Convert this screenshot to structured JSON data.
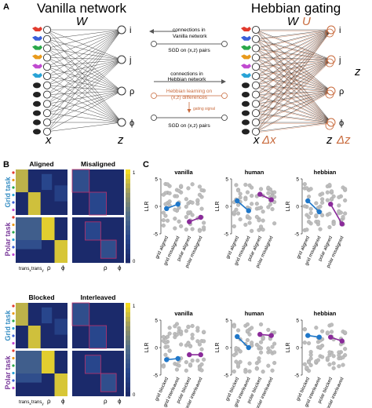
{
  "panel_a": {
    "letter": "A",
    "vanilla": {
      "title": "Vanilla network",
      "weight_label": "W",
      "input_label": "x",
      "output_label": "z"
    },
    "hebbian": {
      "title": "Hebbian gating",
      "weight_label": "W",
      "weight_label2": "U",
      "input_label": "x",
      "input_delta": "Δx",
      "output_label": "z",
      "output_delta": "Δz",
      "side_label": "z"
    },
    "output_nodes": [
      "i",
      "j",
      "ρ",
      "ϕ"
    ],
    "legend": {
      "vanilla_connections": "connections in\nVanilla network",
      "vanilla_sgd": "SGD on (x,z) pairs",
      "hebbian_connections": "connections in\nHebbian network",
      "hebbian_learning": "Hebbian learning on\n(x,z) differences",
      "gating_signal": "gating signal",
      "hebbian_sgd": "SGD on (x,z) pairs"
    },
    "colors": {
      "hebbian": "#c86a3c",
      "vanilla": "#333333"
    }
  },
  "panel_b": {
    "letter": "B",
    "top": {
      "col_titles": [
        "Aligned",
        "Misaligned"
      ],
      "row_titles": [
        "Grid task",
        "Polar task"
      ],
      "x_ticks": [
        "trans",
        "trans",
        "ρ",
        "ϕ"
      ],
      "x_subs": [
        "x",
        "y",
        "",
        ""
      ],
      "cbar_ticks": [
        "1",
        "0"
      ]
    },
    "bottom": {
      "col_titles": [
        "Blocked",
        "Interleaved"
      ],
      "row_titles": [
        "Grid task",
        "Polar task"
      ],
      "x_ticks": [
        "trans",
        "trans",
        "ρ",
        "ϕ"
      ],
      "x_subs": [
        "x",
        "y",
        "",
        ""
      ],
      "cbar_ticks": [
        "1",
        "0"
      ]
    },
    "colors": {
      "grid": "#3a8fc4",
      "polar": "#7a3a9a"
    }
  },
  "panel_c": {
    "letter": "C",
    "chart_data": [
      {
        "type": "scatter",
        "title": "vanilla",
        "ylabel": "LLR",
        "ylim": [
          -5,
          5
        ],
        "yticks": [
          "5",
          "0",
          "-5"
        ],
        "categories": [
          "grid aligned",
          "grid misaligned",
          "polar aligned",
          "polar misaligned"
        ],
        "series": [
          {
            "color": "#1f77c9",
            "x": [
              "grid aligned",
              "grid misaligned"
            ],
            "values": [
              -0.4,
              0.4
            ]
          },
          {
            "color": "#8a2a9a",
            "x": [
              "polar aligned",
              "polar misaligned"
            ],
            "values": [
              -2.8,
              -2.0
            ]
          }
        ]
      },
      {
        "type": "scatter",
        "title": "human",
        "ylabel": "LLR",
        "ylim": [
          -5,
          5
        ],
        "yticks": [
          "5",
          "0",
          "-5"
        ],
        "categories": [
          "grid aligned",
          "grid misaligned",
          "polar aligned",
          "polar misaligned"
        ],
        "series": [
          {
            "color": "#1f77c9",
            "x": [
              "grid aligned",
              "grid misaligned"
            ],
            "values": [
              1.0,
              -0.8
            ]
          },
          {
            "color": "#8a2a9a",
            "x": [
              "polar aligned",
              "polar misaligned"
            ],
            "values": [
              2.2,
              1.2
            ]
          }
        ]
      },
      {
        "type": "scatter",
        "title": "hebbian",
        "ylabel": "LLR",
        "ylim": [
          -5,
          5
        ],
        "yticks": [
          "5",
          "0",
          "-5"
        ],
        "categories": [
          "grid aligned",
          "grid misaligned",
          "polar aligned",
          "polar misaligned"
        ],
        "series": [
          {
            "color": "#1f77c9",
            "x": [
              "grid aligned",
              "grid misaligned"
            ],
            "values": [
              1.0,
              -1.0
            ]
          },
          {
            "color": "#8a2a9a",
            "x": [
              "polar aligned",
              "polar misaligned"
            ],
            "values": [
              0.4,
              -3.2
            ]
          }
        ]
      },
      {
        "type": "scatter",
        "title": "vanilla",
        "ylabel": "LLR",
        "ylim": [
          -5,
          5
        ],
        "yticks": [
          "5",
          "0",
          "-5"
        ],
        "categories": [
          "grid blocked",
          "grid interleaved",
          "polar blocked",
          "polar interleaved"
        ],
        "series": [
          {
            "color": "#1f77c9",
            "x": [
              "grid blocked",
              "grid interleaved"
            ],
            "values": [
              -2.2,
              -2.0
            ]
          },
          {
            "color": "#8a2a9a",
            "x": [
              "polar blocked",
              "polar interleaved"
            ],
            "values": [
              -1.3,
              -1.3
            ]
          }
        ]
      },
      {
        "type": "scatter",
        "title": "human",
        "ylabel": "LLR",
        "ylim": [
          -5,
          5
        ],
        "yticks": [
          "5",
          "0",
          "-5"
        ],
        "categories": [
          "grid blocked",
          "grid interleaved",
          "polar blocked",
          "polar interleaved"
        ],
        "series": [
          {
            "color": "#1f77c9",
            "x": [
              "grid blocked",
              "grid interleaved"
            ],
            "values": [
              2.0,
              0.0
            ]
          },
          {
            "color": "#8a2a9a",
            "x": [
              "polar blocked",
              "polar interleaved"
            ],
            "values": [
              2.4,
              2.2
            ]
          }
        ]
      },
      {
        "type": "scatter",
        "title": "hebbian",
        "ylabel": "LLR",
        "ylim": [
          -5,
          5
        ],
        "yticks": [
          "5",
          "0",
          "-5"
        ],
        "categories": [
          "grid blocked",
          "grid interleaved",
          "polar blocked",
          "polar interleaved"
        ],
        "series": [
          {
            "color": "#1f77c9",
            "x": [
              "grid blocked",
              "grid interleaved"
            ],
            "values": [
              2.2,
              1.9
            ]
          },
          {
            "color": "#8a2a9a",
            "x": [
              "polar blocked",
              "polar interleaved"
            ],
            "values": [
              1.9,
              1.2
            ]
          }
        ]
      }
    ]
  }
}
